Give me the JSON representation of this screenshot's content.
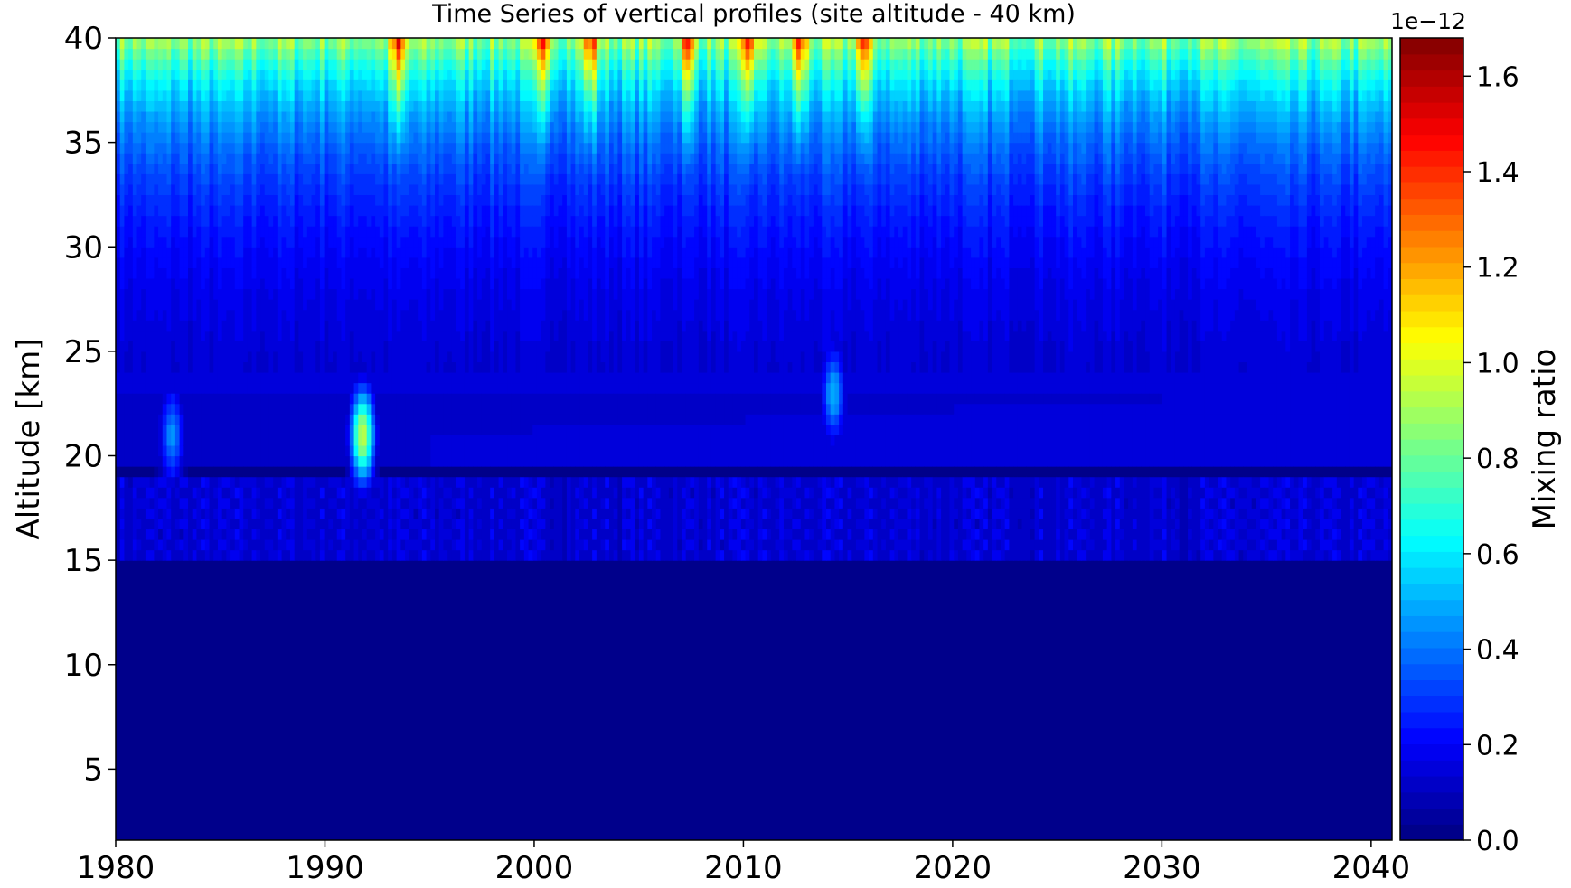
{
  "chart_data": {
    "type": "heatmap",
    "title": "Time Series of vertical profiles (site altitude - 40 km)",
    "xlabel": "",
    "ylabel": "Altitude [km]",
    "xlim": [
      1980,
      2041
    ],
    "ylim": [
      1.6,
      40
    ],
    "x_ticks": [
      1980,
      1990,
      2000,
      2010,
      2020,
      2030,
      2040
    ],
    "y_ticks": [
      5,
      10,
      15,
      20,
      25,
      30,
      35,
      40
    ],
    "colorbar": {
      "label": "Mixing ratio",
      "multiplier": "1e−12",
      "range": [
        0.0,
        1.68
      ],
      "ticks": [
        "0.0",
        "0.2",
        "0.4",
        "0.6",
        "0.8",
        "1.0",
        "1.2",
        "1.4",
        "1.6"
      ],
      "colormap": "jet",
      "levels": 50
    },
    "features": {
      "tropopause_noise_band_km": [
        15,
        19
      ],
      "upper_max_years": [
        1993.5,
        2000.5,
        2002.7,
        2007.3,
        2010.3,
        2012.7,
        2015.7
      ],
      "plume_events": [
        {
          "year": 1991.8,
          "alt_km": 21,
          "value": 0.95
        },
        {
          "year": 2014.3,
          "alt_km": 23,
          "value": 0.5
        },
        {
          "year": 1982.7,
          "alt_km": 21,
          "value": 0.45
        }
      ]
    },
    "grid": false
  }
}
